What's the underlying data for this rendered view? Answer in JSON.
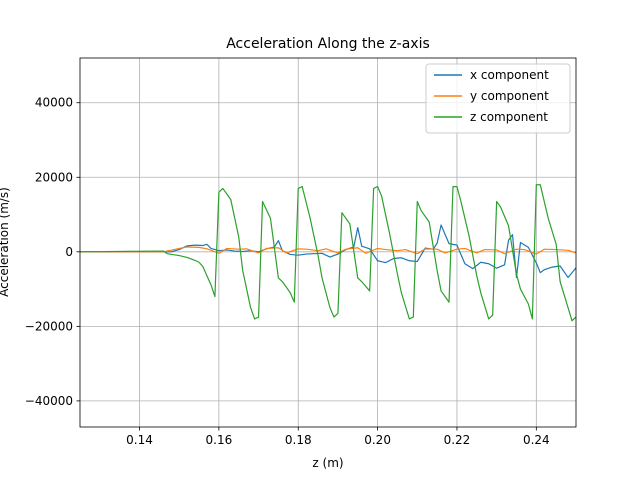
{
  "chart_data": {
    "type": "line",
    "title": "Acceleration Along the z-axis",
    "xlabel": "z (m)",
    "ylabel": "Acceleration (m/s)",
    "xlim": [
      0.125,
      0.25
    ],
    "ylim": [
      -47000,
      52000
    ],
    "xticks": [
      0.14,
      0.16,
      0.18,
      0.2,
      0.22,
      0.24
    ],
    "xtick_labels": [
      "0.14",
      "0.16",
      "0.18",
      "0.20",
      "0.22",
      "0.24"
    ],
    "yticks": [
      -40000,
      -20000,
      0,
      20000,
      40000
    ],
    "ytick_labels": [
      "−40000",
      "−20000",
      "0",
      "20000",
      "40000"
    ],
    "grid": true,
    "legend_position": "top-right",
    "series": [
      {
        "name": "x component",
        "color": "#1f77b4",
        "x": [
          0.125,
          0.145,
          0.148,
          0.15,
          0.152,
          0.154,
          0.156,
          0.157,
          0.158,
          0.16,
          0.162,
          0.164,
          0.166,
          0.168,
          0.17,
          0.172,
          0.174,
          0.175,
          0.176,
          0.178,
          0.18,
          0.182,
          0.184,
          0.186,
          0.188,
          0.19,
          0.192,
          0.194,
          0.195,
          0.196,
          0.198,
          0.2,
          0.202,
          0.204,
          0.206,
          0.208,
          0.21,
          0.212,
          0.214,
          0.215,
          0.216,
          0.218,
          0.22,
          0.222,
          0.224,
          0.226,
          0.228,
          0.23,
          0.232,
          0.233,
          0.234,
          0.235,
          0.236,
          0.238,
          0.24,
          0.241,
          0.242,
          0.244,
          0.246,
          0.248,
          0.25
        ],
        "y": [
          0,
          0,
          0,
          600,
          1600,
          1800,
          1700,
          2000,
          900,
          300,
          500,
          200,
          100,
          300,
          0,
          800,
          1300,
          3000,
          300,
          -700,
          -900,
          -600,
          -500,
          -400,
          -1400,
          -600,
          600,
          1300,
          6500,
          1500,
          800,
          -2400,
          -2900,
          -1800,
          -1600,
          -2400,
          -2600,
          1000,
          700,
          2300,
          7200,
          2200,
          1800,
          -3200,
          -4500,
          -2800,
          -3200,
          -4400,
          -3500,
          3100,
          4600,
          -6900,
          2500,
          1200,
          -3000,
          -5600,
          -4800,
          -4100,
          -3800,
          -6900,
          -4300
        ]
      },
      {
        "name": "y component",
        "color": "#ff7f0e",
        "x": [
          0.125,
          0.146,
          0.15,
          0.152,
          0.155,
          0.157,
          0.16,
          0.162,
          0.165,
          0.167,
          0.17,
          0.172,
          0.175,
          0.177,
          0.18,
          0.182,
          0.185,
          0.187,
          0.19,
          0.192,
          0.195,
          0.197,
          0.2,
          0.202,
          0.205,
          0.207,
          0.21,
          0.212,
          0.215,
          0.217,
          0.22,
          0.222,
          0.225,
          0.227,
          0.23,
          0.232,
          0.235,
          0.237,
          0.24,
          0.242,
          0.245,
          0.248,
          0.25
        ],
        "y": [
          0,
          0,
          900,
          1300,
          1200,
          800,
          -400,
          900,
          700,
          800,
          -300,
          900,
          1100,
          -300,
          800,
          700,
          300,
          800,
          -300,
          700,
          1100,
          -400,
          900,
          600,
          300,
          600,
          -500,
          800,
          700,
          -300,
          700,
          900,
          -300,
          600,
          500,
          -500,
          700,
          600,
          -600,
          700,
          600,
          400,
          -300
        ]
      },
      {
        "name": "z component",
        "color": "#2ca02c",
        "x": [
          0.125,
          0.146,
          0.147,
          0.15,
          0.152,
          0.154,
          0.155,
          0.156,
          0.157,
          0.158,
          0.159,
          0.16,
          0.161,
          0.163,
          0.165,
          0.166,
          0.168,
          0.169,
          0.17,
          0.171,
          0.173,
          0.175,
          0.176,
          0.178,
          0.179,
          0.18,
          0.181,
          0.183,
          0.185,
          0.186,
          0.188,
          0.189,
          0.19,
          0.191,
          0.193,
          0.195,
          0.196,
          0.198,
          0.199,
          0.2,
          0.201,
          0.203,
          0.205,
          0.206,
          0.208,
          0.209,
          0.21,
          0.211,
          0.213,
          0.215,
          0.216,
          0.218,
          0.219,
          0.22,
          0.221,
          0.223,
          0.225,
          0.226,
          0.228,
          0.229,
          0.23,
          0.231,
          0.233,
          0.235,
          0.236,
          0.238,
          0.239,
          0.24,
          0.241,
          0.243,
          0.245,
          0.246,
          0.248,
          0.249,
          0.25
        ],
        "y": [
          0,
          200,
          -500,
          -1000,
          -1500,
          -2300,
          -2800,
          -4000,
          -6500,
          -8800,
          -12000,
          16000,
          17000,
          14000,
          4000,
          -5000,
          -15000,
          -18000,
          -17500,
          13500,
          9000,
          -7000,
          -8000,
          -11000,
          -13500,
          17000,
          17500,
          9000,
          -1000,
          -7000,
          -15000,
          -17500,
          -16500,
          10500,
          7500,
          -7000,
          -8000,
          -10500,
          17000,
          17500,
          15000,
          5000,
          -6000,
          -11000,
          -18000,
          -17500,
          13500,
          11000,
          8000,
          -5000,
          -10500,
          -13500,
          17500,
          17500,
          13500,
          4500,
          -6500,
          -11000,
          -18000,
          -17000,
          13500,
          12000,
          7000,
          -6000,
          -10000,
          -14000,
          -18000,
          18000,
          18000,
          9000,
          2000,
          -8000,
          -15000,
          -18500,
          -17500
        ]
      }
    ]
  }
}
